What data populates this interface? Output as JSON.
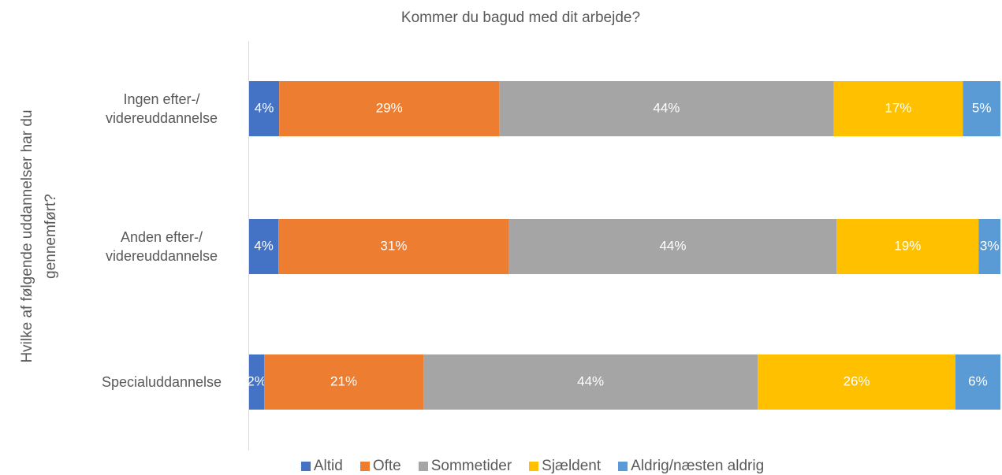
{
  "chart_data": {
    "type": "bar_stacked_horizontal",
    "title": "Kommer du bagud med dit arbejde?",
    "y_axis_label": "Hvilke af følgende uddannelser har du gennemført?",
    "categories": [
      "Ingen efter-/ videreuddannelse",
      "Anden efter-/ videreuddannelse",
      "Specialuddannelse"
    ],
    "xlim": [
      0,
      100
    ],
    "series": [
      {
        "name": "Altid",
        "color": "#4472c4",
        "values": [
          4.0,
          3.9,
          2.0
        ],
        "value_labels": [
          "4%",
          "4%",
          "2%"
        ]
      },
      {
        "name": "Ofte",
        "color": "#ed7d31",
        "values": [
          29.3,
          30.7,
          21.2
        ],
        "value_labels": [
          "29%",
          "31%",
          "21%"
        ]
      },
      {
        "name": "Sommetider",
        "color": "#a5a5a5",
        "values": [
          44.5,
          43.6,
          44.5
        ],
        "value_labels": [
          "44%",
          "44%",
          "44%"
        ]
      },
      {
        "name": "Sjældent",
        "color": "#ffc000",
        "values": [
          17.2,
          18.9,
          26.3
        ],
        "value_labels": [
          "17%",
          "19%",
          "26%"
        ]
      },
      {
        "name": "Aldrig/næsten aldrig",
        "color": "#5b9bd5",
        "values": [
          5.0,
          2.9,
          6.0
        ],
        "value_labels": [
          "5%",
          "3%",
          "6%"
        ]
      }
    ],
    "legend": "bottom"
  }
}
